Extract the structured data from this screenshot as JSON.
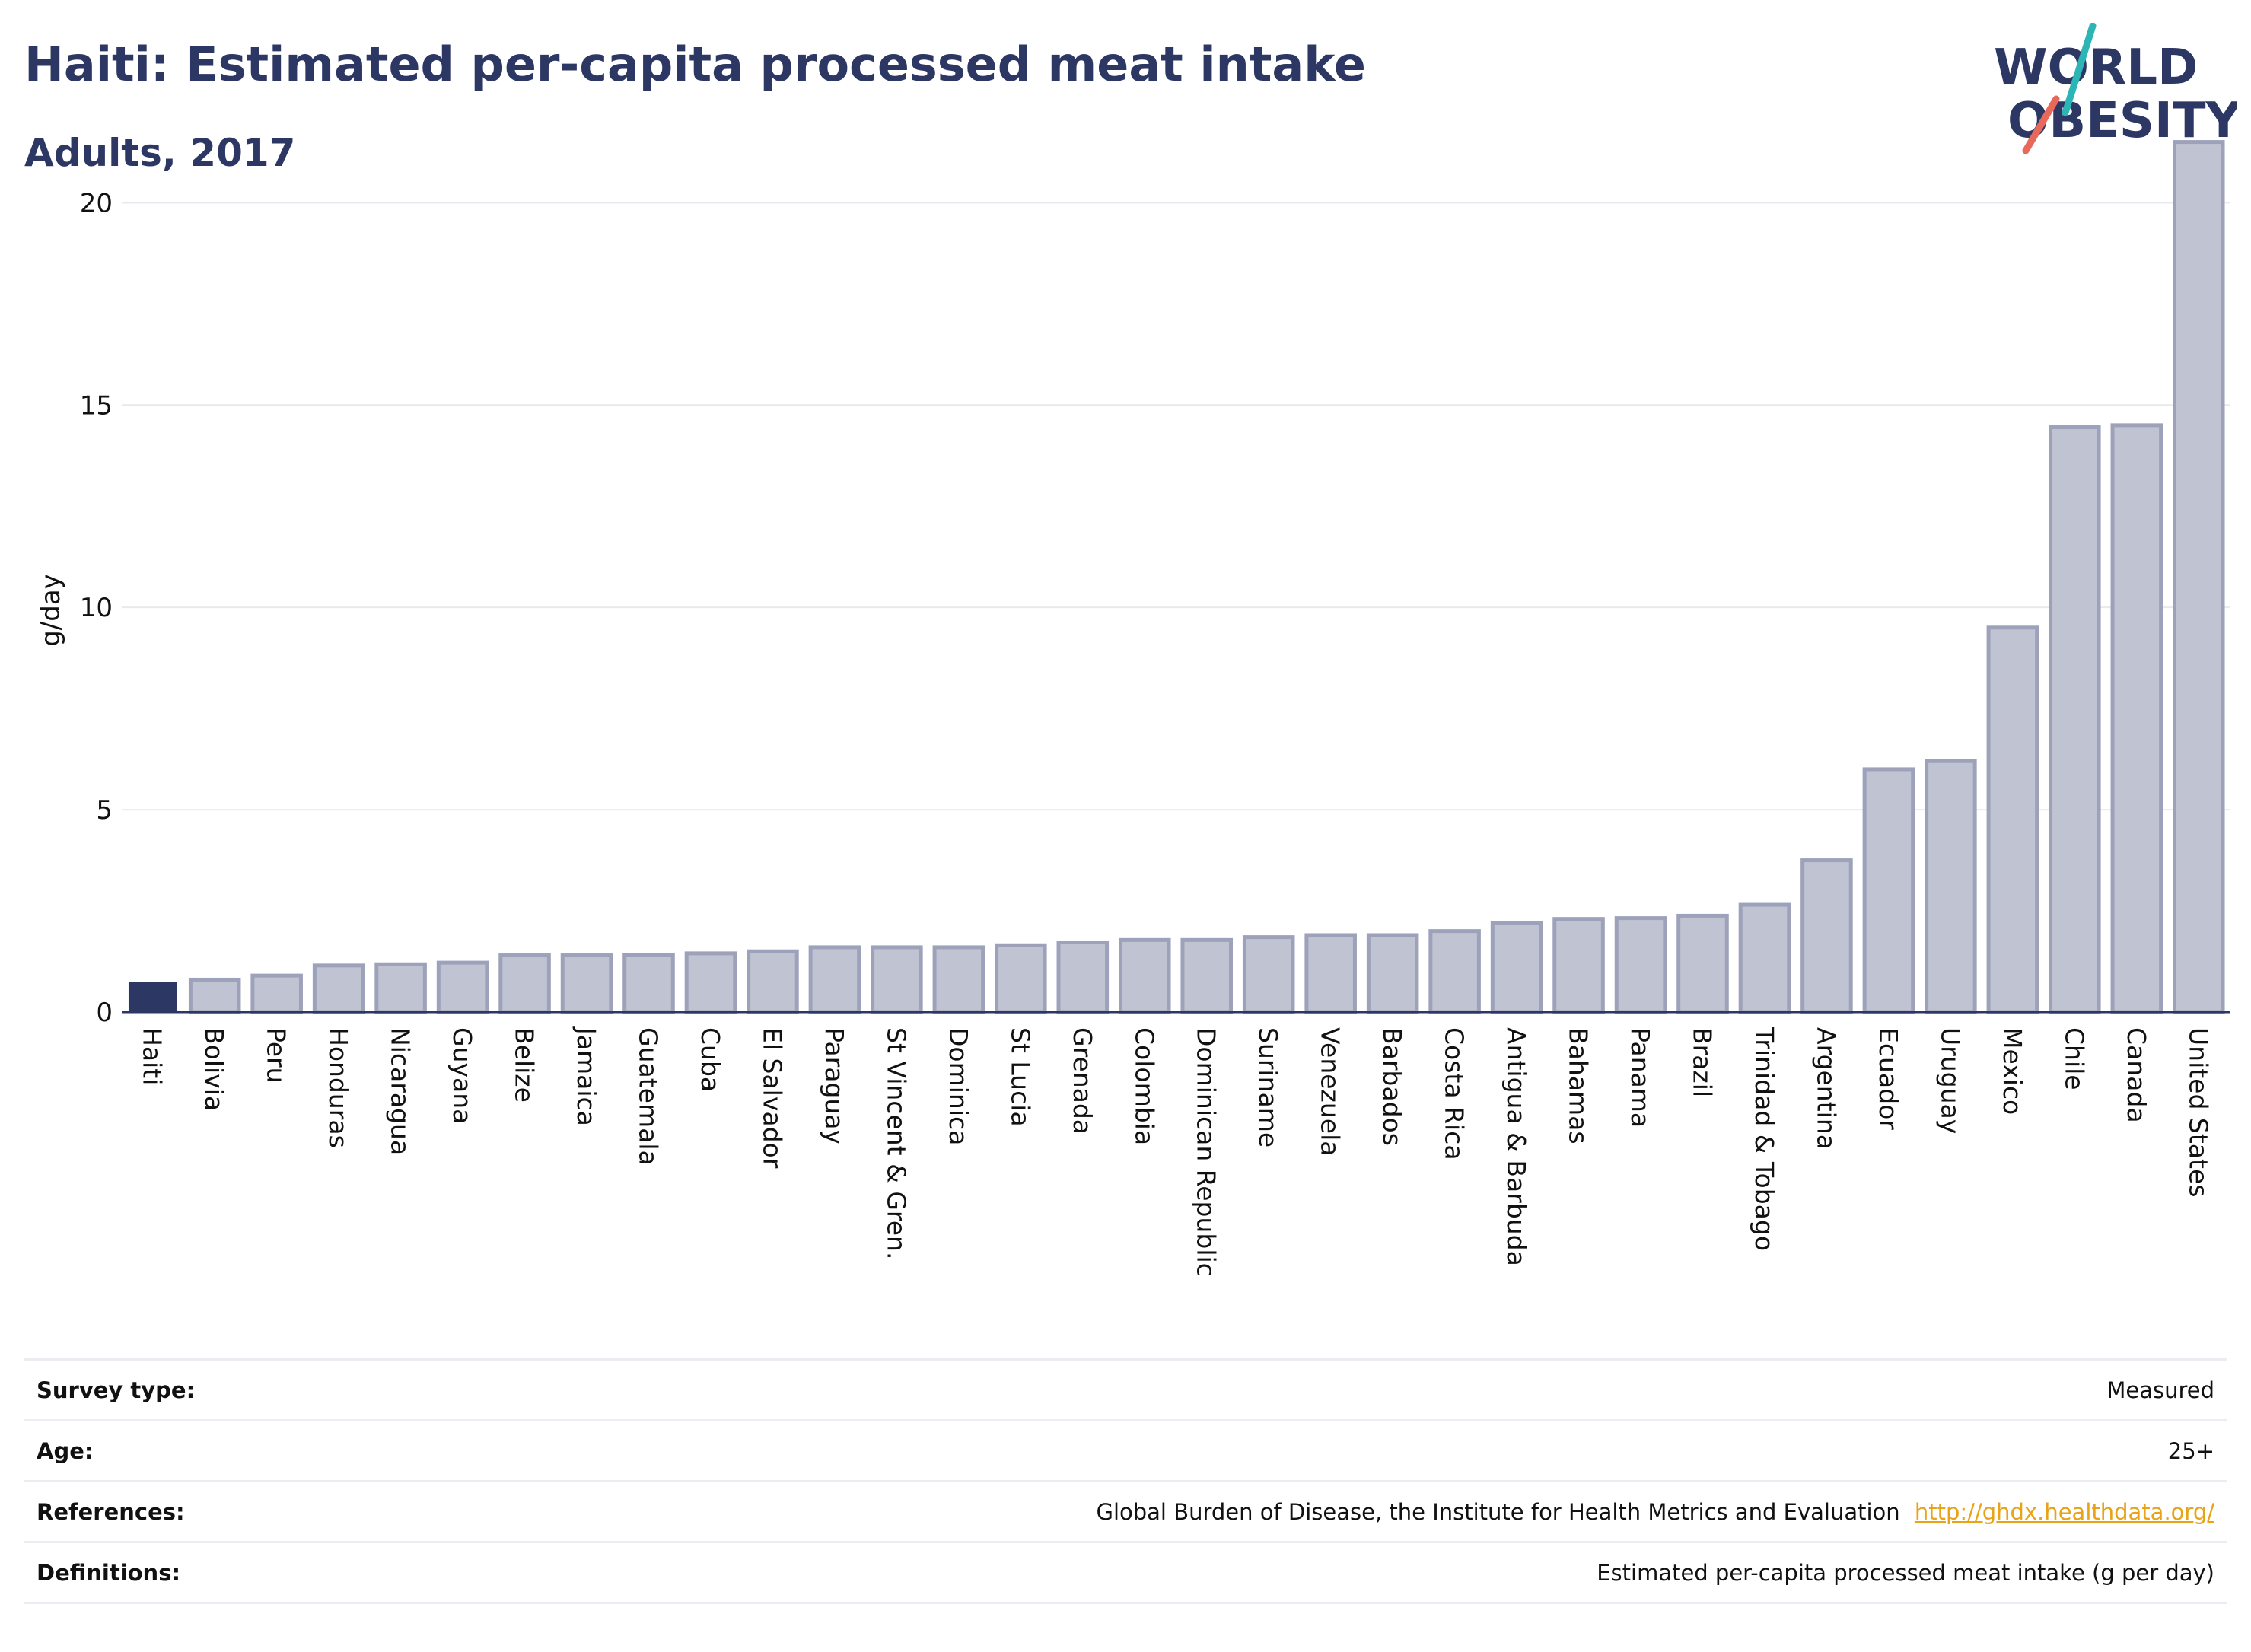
{
  "header": {
    "title": "Haiti: Estimated per-capita processed meat intake",
    "subtitle": "Adults, 2017"
  },
  "logo": {
    "line1": "WORLD",
    "line2": "OBESITY"
  },
  "colors": {
    "title": "#2c3764",
    "highlight_bar": "#2c3764",
    "bar_fill": "#c0c3d1",
    "bar_stroke": "#9da2ba",
    "gridline": "#e8e8ee",
    "link": "#e8a317",
    "logo_teal": "#2bb5b5",
    "logo_coral": "#e8685a"
  },
  "chart_data": {
    "type": "bar",
    "title": "Haiti: Estimated per-capita processed meat intake",
    "subtitle": "Adults, 2017",
    "xlabel": "",
    "ylabel": "g/day",
    "ylim": [
      0,
      22
    ],
    "yticks": [
      0,
      5,
      10,
      15,
      20
    ],
    "grid": true,
    "highlight": "Haiti",
    "categories": [
      "Haiti",
      "Bolivia",
      "Peru",
      "Honduras",
      "Nicaragua",
      "Guyana",
      "Belize",
      "Jamaica",
      "Guatemala",
      "Cuba",
      "El Salvador",
      "Paraguay",
      "St Vincent & Gren.",
      "Dominica",
      "St Lucia",
      "Grenada",
      "Colombia",
      "Dominican Republic",
      "Suriname",
      "Venezuela",
      "Barbados",
      "Costa Rica",
      "Antigua & Barbuda",
      "Bahamas",
      "Panama",
      "Brazil",
      "Trinidad & Tobago",
      "Argentina",
      "Ecuador",
      "Uruguay",
      "Mexico",
      "Chile",
      "Canada",
      "United States"
    ],
    "values": [
      0.75,
      0.8,
      0.9,
      1.15,
      1.18,
      1.22,
      1.4,
      1.4,
      1.42,
      1.45,
      1.5,
      1.6,
      1.6,
      1.6,
      1.65,
      1.72,
      1.78,
      1.78,
      1.85,
      1.9,
      1.9,
      2.0,
      2.2,
      2.3,
      2.32,
      2.38,
      2.65,
      3.75,
      6.0,
      6.2,
      9.5,
      14.45,
      14.5,
      21.5
    ]
  },
  "meta": {
    "survey_label": "Survey type:",
    "survey_value": "Measured",
    "age_label": "Age:",
    "age_value": "25+",
    "references_label": "References:",
    "references_value": "Global Burden of Disease, the Institute for Health Metrics and Evaluation",
    "references_link": "http://ghdx.healthdata.org/",
    "definitions_label": "Definitions:",
    "definitions_value": "Estimated per-capita processed meat intake (g per day)"
  }
}
